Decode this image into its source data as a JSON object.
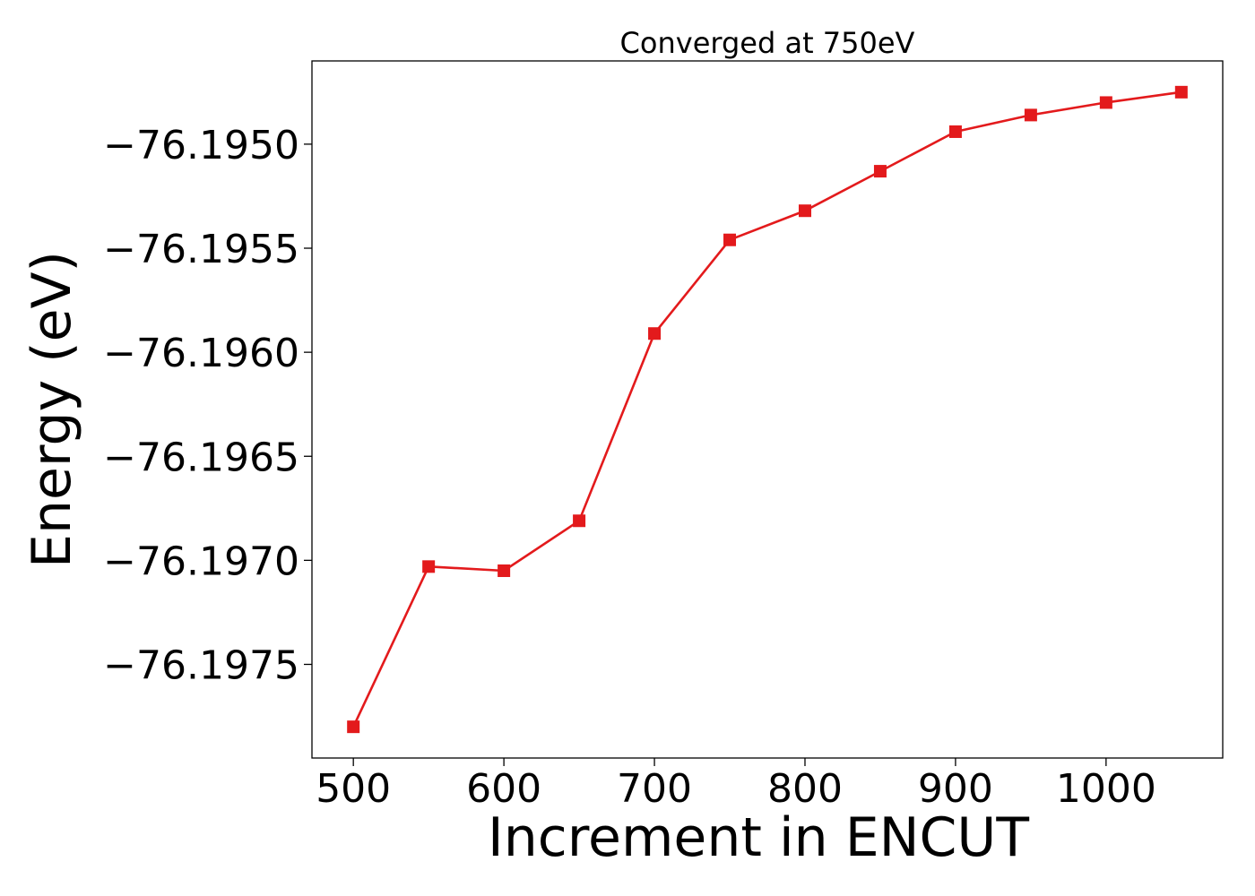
{
  "chart_data": {
    "type": "line",
    "title": "Converged at 750eV",
    "xlabel": "Increment in ENCUT",
    "ylabel": "Energy (eV)",
    "x": [
      500,
      550,
      600,
      650,
      700,
      750,
      800,
      850,
      900,
      950,
      1000,
      1050
    ],
    "series": [
      {
        "values": [
          -76.1978,
          -76.19703,
          -76.19705,
          -76.19681,
          -76.19591,
          -76.19546,
          -76.19532,
          -76.19513,
          -76.19494,
          -76.19486,
          -76.1948,
          -76.19475
        ],
        "color": "#e31a1c",
        "marker": "square"
      }
    ],
    "xticks": [
      500,
      600,
      700,
      800,
      900,
      1000
    ],
    "xtick_labels": [
      "500",
      "600",
      "700",
      "800",
      "900",
      "1000"
    ],
    "yticks": [
      -76.1975,
      -76.197,
      -76.1965,
      -76.196,
      -76.1955,
      -76.195
    ],
    "ytick_labels": [
      "−76.1975",
      "−76.1970",
      "−76.1965",
      "−76.1960",
      "−76.1955",
      "−76.1950"
    ],
    "xlim": [
      472.5,
      1077.5
    ],
    "ylim": [
      -76.19795,
      -76.1946
    ],
    "grid": false,
    "legend": "none"
  }
}
